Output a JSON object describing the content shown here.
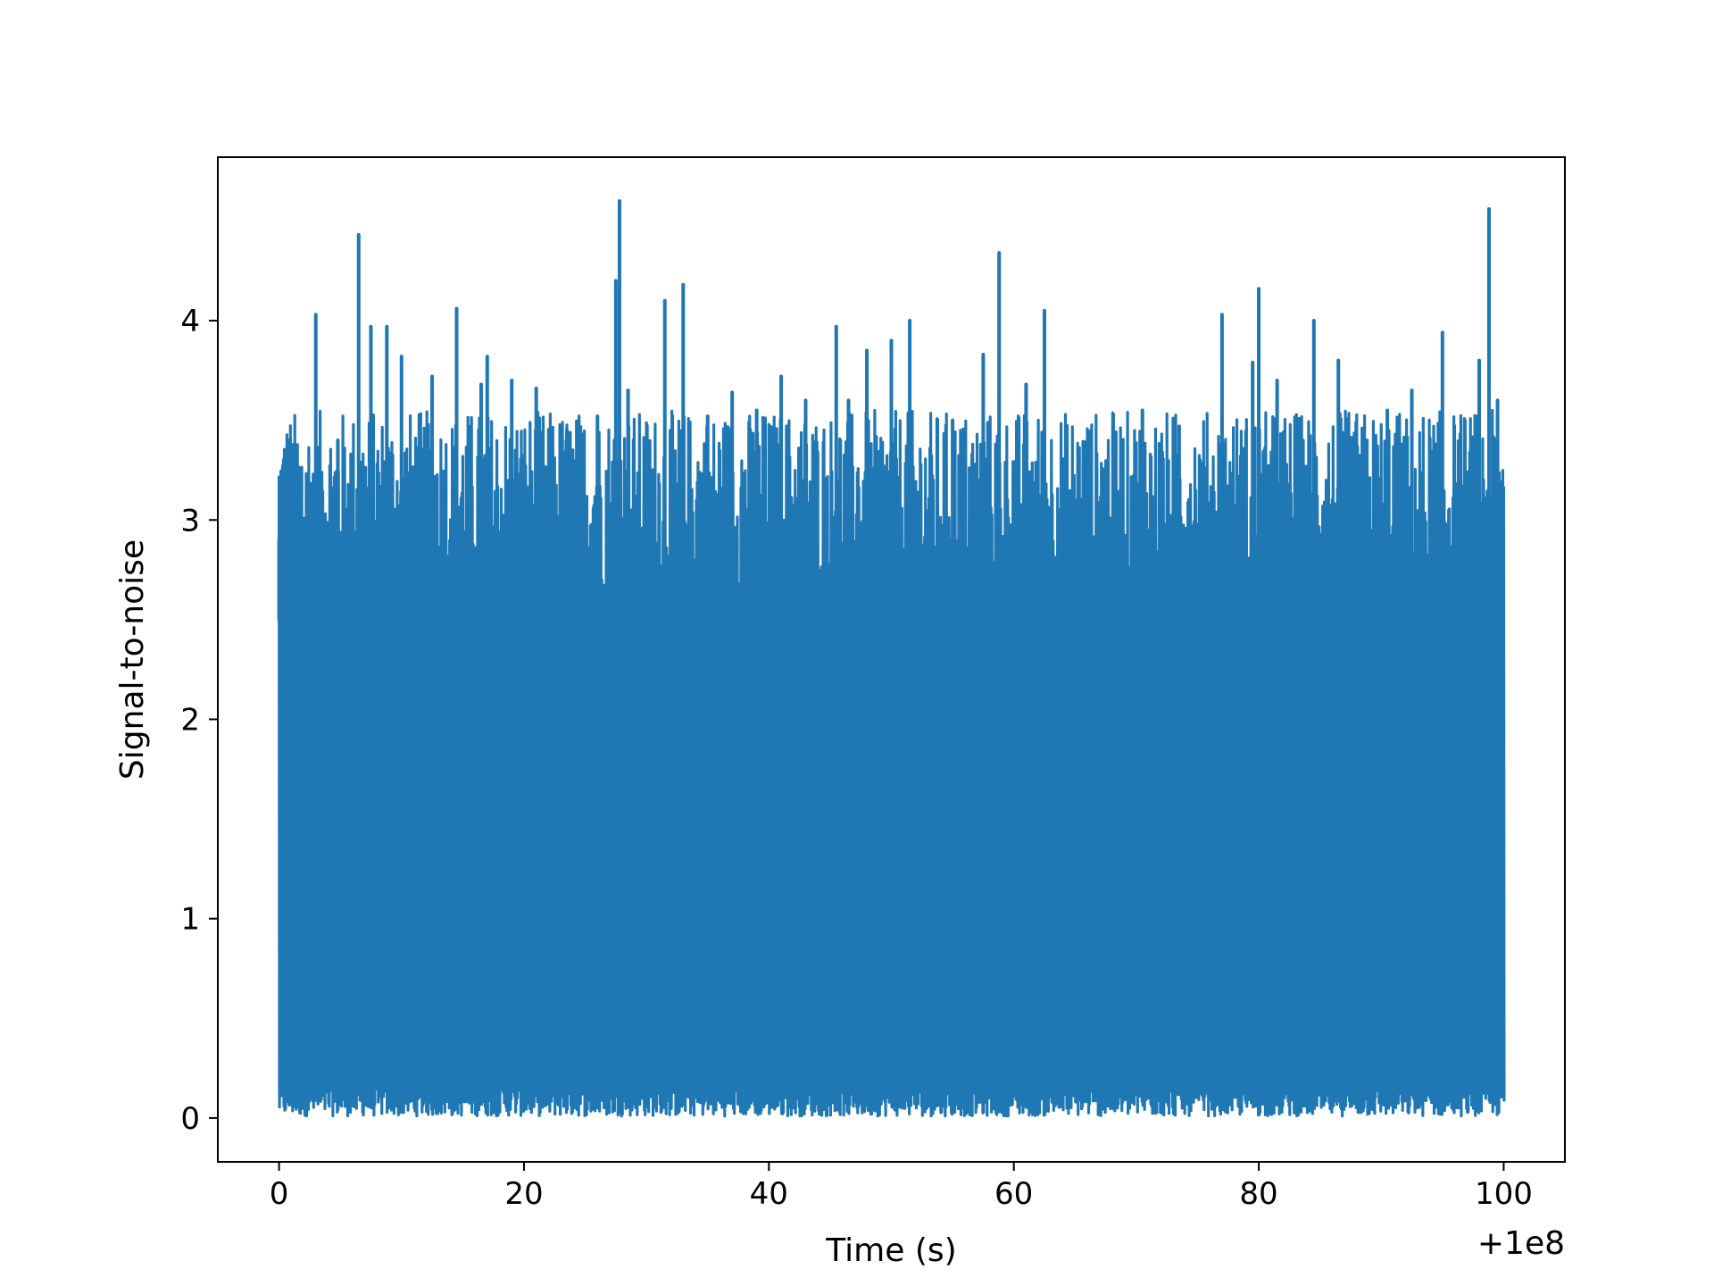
{
  "chart_data": {
    "type": "line",
    "title": "",
    "xlabel": "Time (s)",
    "ylabel": "Signal-to-noise",
    "x_offset_label": "+1e8",
    "x_offset": 100000000,
    "xlim": [
      -5,
      105
    ],
    "ylim": [
      -0.22,
      4.82
    ],
    "xticks": [
      0,
      20,
      40,
      60,
      80,
      100
    ],
    "xtick_labels": [
      "0",
      "20",
      "40",
      "60",
      "80",
      "100"
    ],
    "yticks": [
      0,
      1,
      2,
      3,
      4
    ],
    "ytick_labels": [
      "0",
      "1",
      "2",
      "3",
      "4"
    ],
    "grid": false,
    "legend": "none",
    "line_color": "#1f77b4",
    "series": [
      {
        "x_range": [
          0,
          100
        ],
        "baseline": {
          "min": 0.15,
          "max": 2.6
        },
        "peaks": [
          [
            0.0,
            2.9
          ],
          [
            0.8,
            3.4
          ],
          [
            1.5,
            3.05
          ],
          [
            3.0,
            4.03
          ],
          [
            4.8,
            3.4
          ],
          [
            6.5,
            4.43
          ],
          [
            7.5,
            3.97
          ],
          [
            8.8,
            3.97
          ],
          [
            10.0,
            3.82
          ],
          [
            12.5,
            3.72
          ],
          [
            14.5,
            4.06
          ],
          [
            16.5,
            3.68
          ],
          [
            17.0,
            3.82
          ],
          [
            19.0,
            3.7
          ],
          [
            21.0,
            3.66
          ],
          [
            23.5,
            3.45
          ],
          [
            26.0,
            3.52
          ],
          [
            27.5,
            4.2
          ],
          [
            27.8,
            4.6
          ],
          [
            28.5,
            3.65
          ],
          [
            31.5,
            4.1
          ],
          [
            33.0,
            4.18
          ],
          [
            35.0,
            3.52
          ],
          [
            37.0,
            3.64
          ],
          [
            39.0,
            3.55
          ],
          [
            41.0,
            3.72
          ],
          [
            43.0,
            3.6
          ],
          [
            45.5,
            3.97
          ],
          [
            46.5,
            3.6
          ],
          [
            48.0,
            3.85
          ],
          [
            50.0,
            3.9
          ],
          [
            51.5,
            4.0
          ],
          [
            55.0,
            3.5
          ],
          [
            57.5,
            3.83
          ],
          [
            58.8,
            4.34
          ],
          [
            61.0,
            3.68
          ],
          [
            62.5,
            4.05
          ],
          [
            66.0,
            3.3
          ],
          [
            70.5,
            3.55
          ],
          [
            73.5,
            3.47
          ],
          [
            77.0,
            4.03
          ],
          [
            79.5,
            3.79
          ],
          [
            80.0,
            4.16
          ],
          [
            81.5,
            3.7
          ],
          [
            84.5,
            4.0
          ],
          [
            86.5,
            3.8
          ],
          [
            90.5,
            3.55
          ],
          [
            92.5,
            3.65
          ],
          [
            95.0,
            3.94
          ],
          [
            98.0,
            3.8
          ],
          [
            98.8,
            4.56
          ],
          [
            99.5,
            3.6
          ]
        ]
      }
    ]
  }
}
